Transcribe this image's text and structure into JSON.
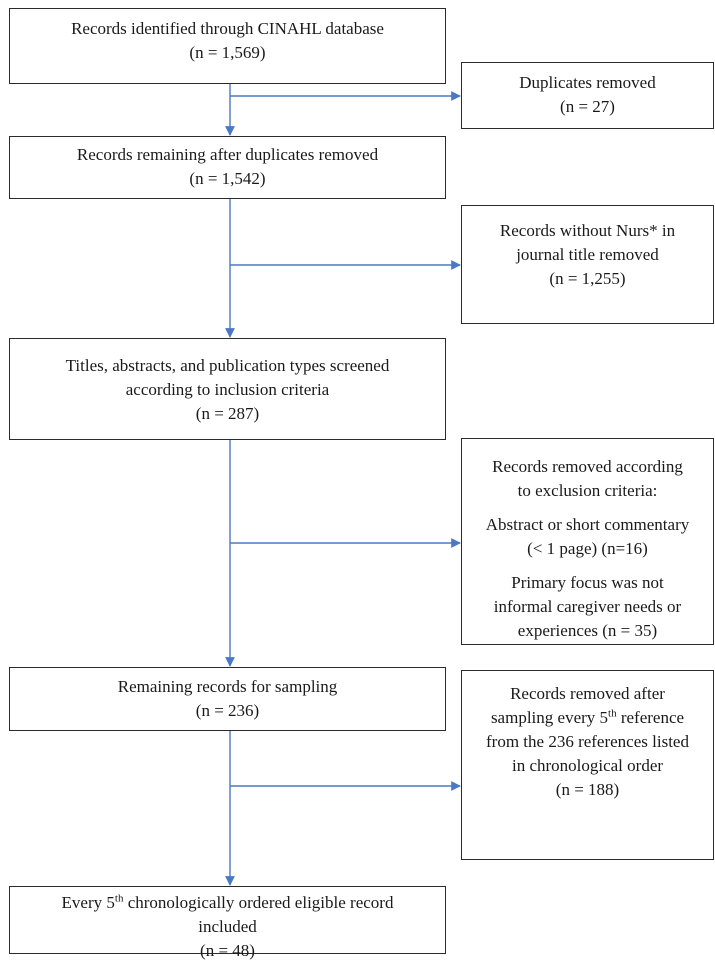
{
  "flow": {
    "identified": {
      "line1": "Records identified through CINAHL database",
      "line2": "(n = 1,569)"
    },
    "duplicates_removed": {
      "line1": "Duplicates removed",
      "line2": "(n = 27)"
    },
    "remaining_after_duplicates": {
      "line1": "Records remaining after duplicates removed",
      "line2": "(n = 1,542)"
    },
    "without_nurs_removed": {
      "line1": "Records without Nurs* in",
      "line2": "journal title removed",
      "line3": "(n = 1,255)"
    },
    "screened": {
      "line1": "Titles, abstracts, and publication types screened",
      "line2": "according to inclusion criteria",
      "line3": "(n = 287)"
    },
    "exclusion_removed": {
      "line1": "Records removed according",
      "line2": "to exclusion criteria:",
      "line3": "Abstract or short commentary",
      "line4": "(< 1 page) (n=16)",
      "line5": "Primary focus was not",
      "line6": "informal caregiver needs or",
      "line7": "experiences (n = 35)"
    },
    "remaining_for_sampling": {
      "line1": "Remaining records for sampling",
      "line2": "(n = 236)"
    },
    "sampling_removed": {
      "line1_pre": "Records removed after",
      "line2_pre": "sampling every 5",
      "line2_sup": "th",
      "line2_post": " reference",
      "line3": "from the 236 references listed",
      "line4": "in chronological order",
      "line5": "(n = 188)"
    },
    "included": {
      "line1_pre": "Every 5",
      "line1_sup": "th",
      "line1_post": " chronologically ordered eligible record",
      "line2": "included",
      "line3": "(n = 48)"
    }
  },
  "colors": {
    "connector": "#4a78c4",
    "box_border": "#2b2b2b"
  }
}
